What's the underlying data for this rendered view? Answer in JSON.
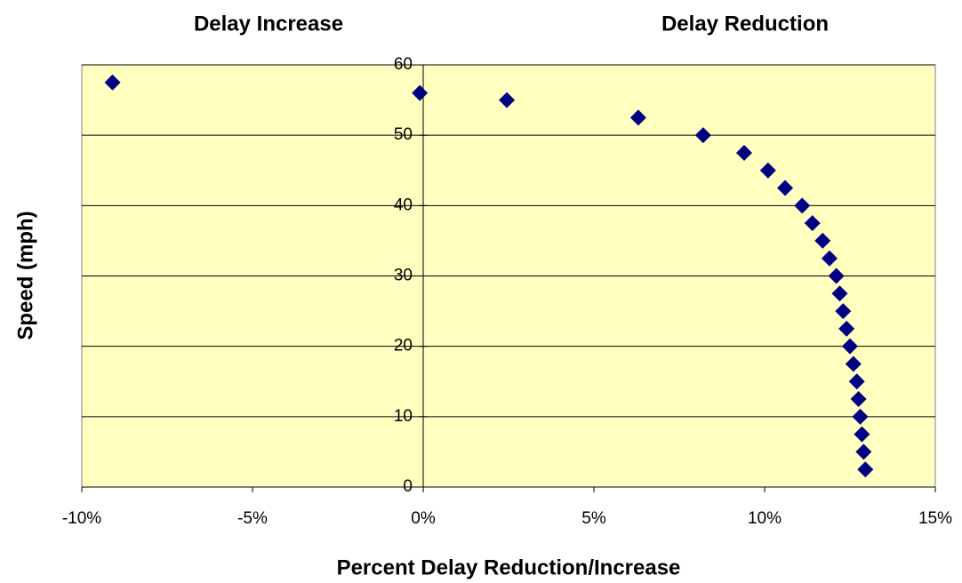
{
  "chart_data": {
    "type": "scatter",
    "annotations": [
      "Delay Increase",
      "Delay Reduction"
    ],
    "x_label": "Percent Delay Reduction/Increase",
    "y_label": "Speed (mph)",
    "x": [
      -9.1,
      -0.1,
      2.45,
      6.3,
      8.2,
      9.4,
      10.1,
      10.6,
      11.1,
      11.4,
      11.7,
      11.9,
      12.1,
      12.2,
      12.3,
      12.4,
      12.5,
      12.6,
      12.7,
      12.75,
      12.8,
      12.85,
      12.9,
      12.95
    ],
    "values": [
      57.5,
      56,
      55,
      52.5,
      50,
      47.5,
      45,
      42.5,
      40,
      37.5,
      35,
      32.5,
      30,
      27.5,
      25,
      22.5,
      20,
      17.5,
      15,
      12.5,
      10,
      7.5,
      5,
      2.5
    ],
    "color": "#000080",
    "xlim": [
      -10,
      15
    ],
    "xticks": [
      {
        "value": -10,
        "label": "-10%"
      },
      {
        "value": -5,
        "label": "-5%"
      },
      {
        "value": 0,
        "label": "0%"
      },
      {
        "value": 5,
        "label": "5%"
      },
      {
        "value": 10,
        "label": "10%"
      },
      {
        "value": 15,
        "label": "15%"
      }
    ],
    "ylim": [
      0,
      60
    ],
    "yticks": [
      0,
      10,
      20,
      30,
      40,
      50,
      60
    ],
    "grid": true,
    "plot_background": "#ffffc0"
  }
}
